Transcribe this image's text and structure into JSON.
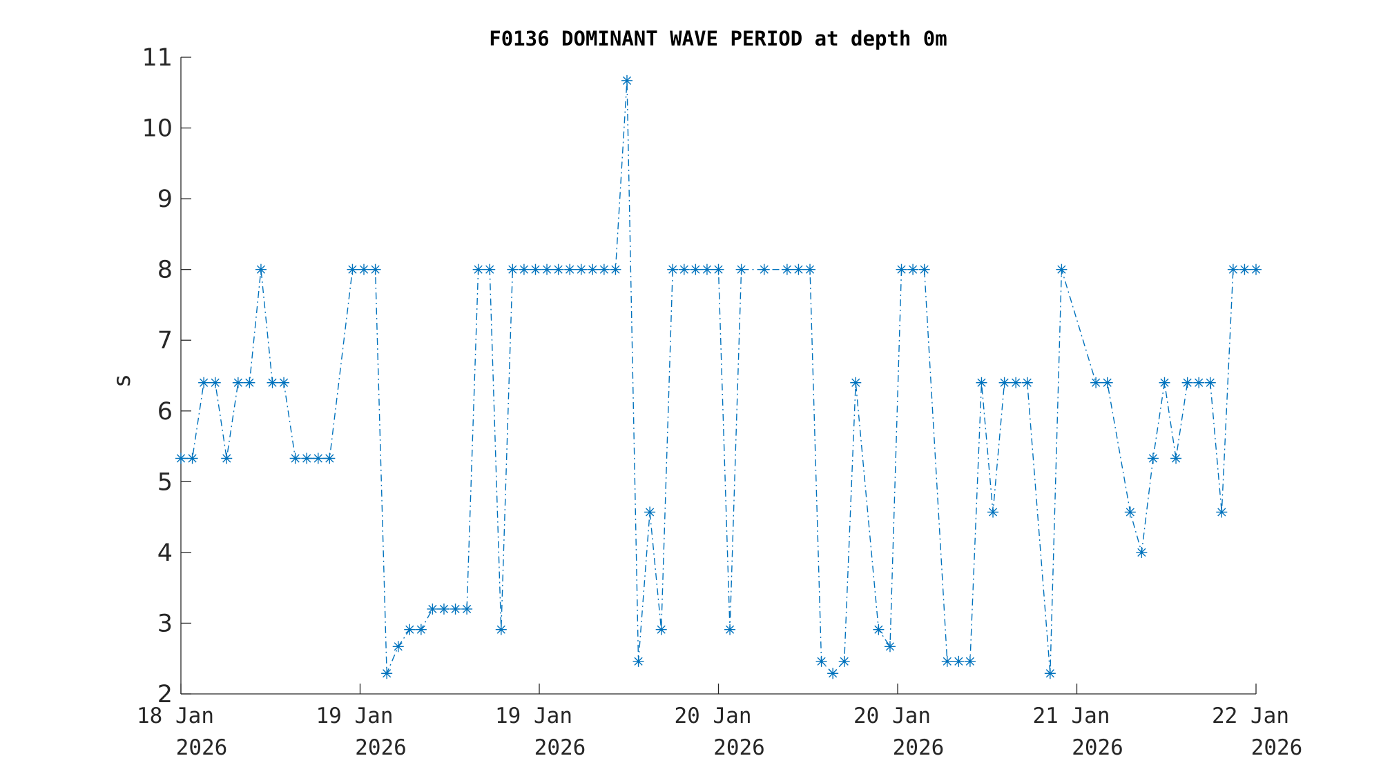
{
  "chart_data": {
    "type": "line",
    "title": "F0136 DOMINANT WAVE PERIOD at depth 0m",
    "xlabel": "",
    "ylabel": "s",
    "ylim": [
      2,
      11
    ],
    "yticks": [
      "2",
      "3",
      "4",
      "5",
      "6",
      "7",
      "8",
      "9",
      "10",
      "11"
    ],
    "xticks": [
      {
        "day": "18 Jan",
        "year": "2026"
      },
      {
        "day": "19 Jan",
        "year": "2026"
      },
      {
        "day": "19 Jan",
        "year": "2026"
      },
      {
        "day": "20 Jan",
        "year": "2026"
      },
      {
        "day": "20 Jan",
        "year": "2026"
      },
      {
        "day": "21 Jan",
        "year": "2026"
      },
      {
        "day": "22 Jan",
        "year": "2026"
      }
    ],
    "grid": false,
    "line_style": "dash-dot",
    "marker": "asterisk",
    "color": "#0072BD",
    "series": [
      {
        "values": [
          5.33,
          5.33,
          6.4,
          6.4,
          5.33,
          6.4,
          6.4,
          8,
          6.4,
          6.4,
          5.33,
          5.33,
          5.33,
          5.33,
          null,
          8,
          8,
          8,
          2.29,
          2.67,
          2.91,
          2.91,
          3.2,
          3.2,
          3.2,
          3.2,
          8,
          8,
          2.91,
          8,
          8,
          8,
          8,
          8,
          8,
          8,
          8,
          8,
          8,
          10.67,
          2.46,
          4.57,
          2.91,
          8,
          8,
          8,
          8,
          8,
          2.91,
          8,
          null,
          8,
          null,
          8,
          8,
          8,
          2.46,
          2.29,
          2.46,
          6.4,
          null,
          2.91,
          2.67,
          8,
          8,
          8,
          null,
          2.46,
          2.46,
          2.46,
          6.4,
          4.57,
          6.4,
          6.4,
          6.4,
          null,
          2.29,
          8,
          null,
          null,
          6.4,
          6.4,
          null,
          4.57,
          4,
          5.33,
          6.4,
          5.33,
          6.4,
          6.4,
          6.4,
          4.57,
          8,
          8,
          8
        ]
      }
    ]
  }
}
